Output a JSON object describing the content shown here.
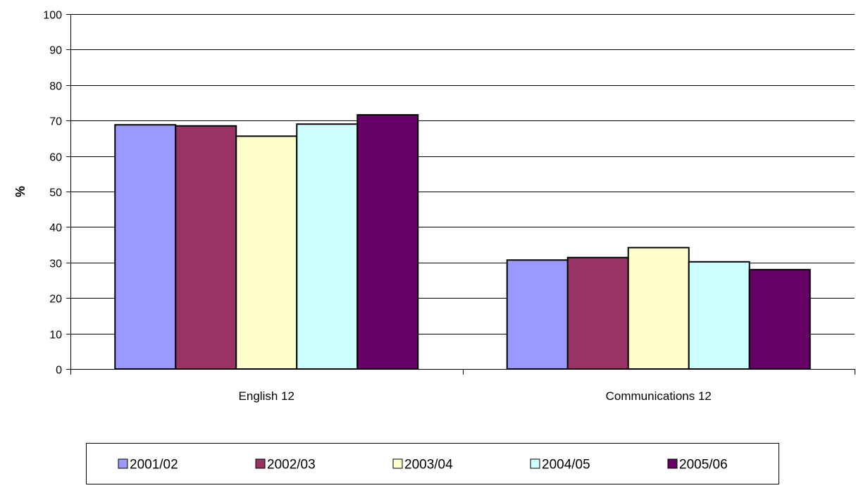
{
  "chart_data": {
    "type": "bar",
    "title": "",
    "xlabel": "",
    "ylabel": "%",
    "ylim": [
      0,
      100
    ],
    "ytick_step": 10,
    "grid": "horizontal",
    "legend_position": "bottom",
    "categories": [
      "English 12",
      "Communications 12"
    ],
    "series": [
      {
        "name": "2001/02",
        "color": "#9999ff",
        "values": [
          68.8,
          30.7
        ]
      },
      {
        "name": "2002/03",
        "color": "#993366",
        "values": [
          68.5,
          31.4
        ]
      },
      {
        "name": "2003/04",
        "color": "#ffffcc",
        "values": [
          65.6,
          34.2
        ]
      },
      {
        "name": "2004/05",
        "color": "#ccffff",
        "values": [
          69.0,
          30.2
        ]
      },
      {
        "name": "2005/06",
        "color": "#660066",
        "values": [
          71.6,
          28.0
        ]
      }
    ]
  }
}
